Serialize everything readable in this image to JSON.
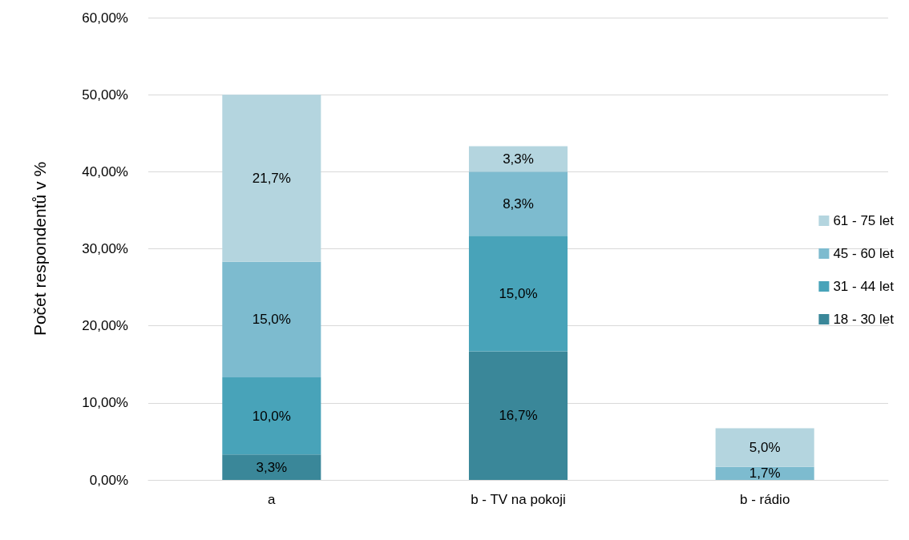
{
  "chart_data": {
    "type": "bar",
    "stacked": true,
    "ylabel": "Počet respondentů v %",
    "categories": [
      "a",
      "b - TV na pokoji",
      "b - rádio"
    ],
    "series": [
      {
        "name": "18 - 30 let",
        "color": "#3a8799",
        "values": [
          3.3,
          16.7,
          null
        ],
        "value_labels": [
          "3,3%",
          "16,7%",
          null
        ]
      },
      {
        "name": "31 - 44 let",
        "color": "#48a3b9",
        "values": [
          10.0,
          15.0,
          null
        ],
        "value_labels": [
          "10,0%",
          "15,0%",
          null
        ]
      },
      {
        "name": "45 - 60 let",
        "color": "#7dbbcf",
        "values": [
          15.0,
          8.3,
          1.7
        ],
        "value_labels": [
          "15,0%",
          "8,3%",
          "1,7%"
        ]
      },
      {
        "name": "61 - 75 let",
        "color": "#b4d5df",
        "values": [
          21.7,
          3.3,
          5.0
        ],
        "value_labels": [
          "21,7%",
          "3,3%",
          "5,0%"
        ]
      }
    ],
    "ylim": [
      0,
      60
    ],
    "yticks": [
      {
        "value": 0,
        "label": "0,00%"
      },
      {
        "value": 10,
        "label": "10,00%"
      },
      {
        "value": 20,
        "label": "20,00%"
      },
      {
        "value": 30,
        "label": "30,00%"
      },
      {
        "value": 40,
        "label": "40,00%"
      },
      {
        "value": 50,
        "label": "50,00%"
      },
      {
        "value": 60,
        "label": "60,00%"
      }
    ],
    "grid": "y",
    "legend": "right"
  }
}
